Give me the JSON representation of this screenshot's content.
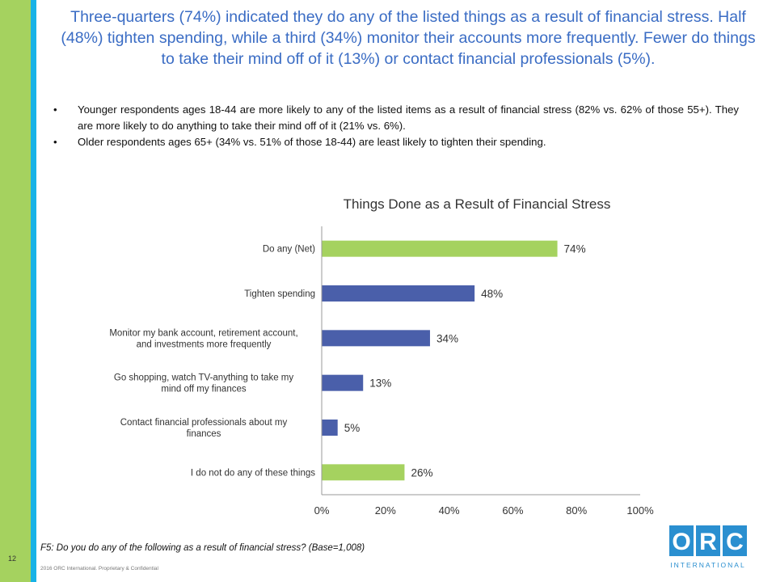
{
  "slide": {
    "title": "Three-quarters (74%) indicated they do any of the listed things as a result of financial stress.  Half (48%) tighten spending, while a third (34%) monitor their accounts more frequently.  Fewer do things to take their mind off of it (13%) or contact financial professionals (5%).",
    "bullets": [
      "Younger respondents ages 18-44 are more likely to any of the listed items as a result of financial stress (82% vs. 62% of those 55+).  They are more likely to do anything to take their mind off of it (21% vs. 6%).",
      "Older respondents ages 65+ (34% vs. 51% of those 18-44) are least likely to tighten their spending."
    ],
    "footnote": "F5:   Do you do any of the following as a result of financial stress? (Base=1,008)",
    "copyright": "2016 ORC International. Proprietary & Confidential",
    "page_number": "12"
  },
  "logo": {
    "letters": [
      "O",
      "R",
      "C"
    ],
    "subtitle": "INTERNATIONAL",
    "color": "#2a8fd0"
  },
  "colors": {
    "green_bar": "#a5d25f",
    "blue_bar": "#4a5faa",
    "title": "#3a6cc4",
    "side_green": "#a5d25f",
    "side_blue": "#18b2e6"
  },
  "chart_data": {
    "type": "bar",
    "orientation": "horizontal",
    "title": "Things Done as a Result of Financial Stress",
    "categories": [
      "Do any (Net)",
      "Tighten spending",
      "Monitor my bank account, retirement account, and investments more frequently",
      "Go shopping, watch TV-anything to take my mind off my finances",
      "Contact financial professionals about my finances",
      "I do not do any of these things"
    ],
    "category_label_lines": [
      [
        "Do any (Net)"
      ],
      [
        "Tighten spending"
      ],
      [
        "Monitor my bank account, retirement account,",
        "and investments more frequently"
      ],
      [
        "Go shopping, watch TV-anything to take my",
        "mind off my finances"
      ],
      [
        "Contact financial professionals about my",
        "finances"
      ],
      [
        "I do not do any of these things"
      ]
    ],
    "values": [
      74,
      48,
      34,
      13,
      5,
      26
    ],
    "value_labels": [
      "74%",
      "48%",
      "34%",
      "13%",
      "5%",
      "26%"
    ],
    "bar_colors": [
      "green",
      "blue",
      "blue",
      "blue",
      "blue",
      "green"
    ],
    "xlim": [
      0,
      100
    ],
    "xticks": [
      "0%",
      "20%",
      "40%",
      "60%",
      "80%",
      "100%"
    ],
    "xtick_values": [
      0,
      20,
      40,
      60,
      80,
      100
    ],
    "grid": false,
    "legend": "none"
  }
}
